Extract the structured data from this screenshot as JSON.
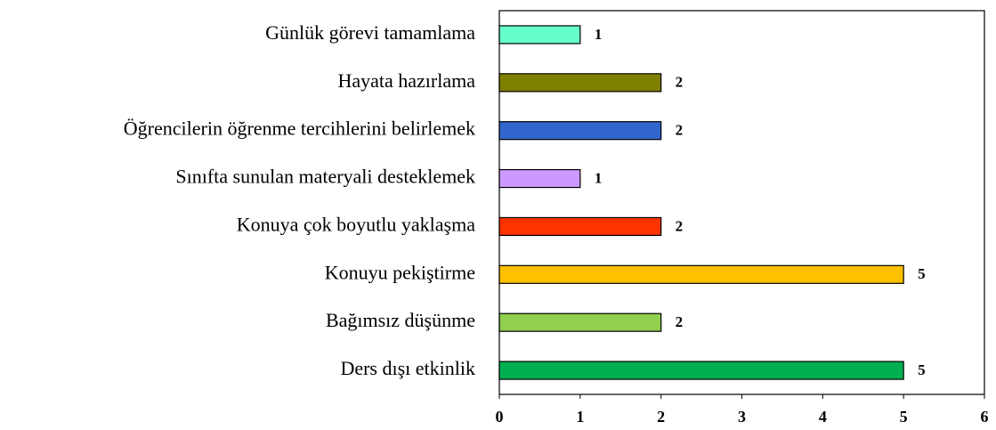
{
  "chart_data": {
    "type": "bar",
    "orientation": "horizontal",
    "categories": [
      "Günlük görevi tamamlama",
      "Hayata hazırlama",
      "Öğrencilerin öğrenme tercihlerini belirlemek",
      "Sınıfta sunulan materyali desteklemek",
      "Konuya çok boyutlu yaklaşma",
      "Konuyu pekiştirme",
      "Bağımsız düşünme",
      "Ders dışı etkinlik"
    ],
    "values": [
      1,
      2,
      2,
      1,
      2,
      5,
      2,
      5
    ],
    "colors": [
      "#66ffcc",
      "#808000",
      "#3366cc",
      "#cc99ff",
      "#ff3300",
      "#ffc000",
      "#92d050",
      "#00b050"
    ],
    "xlim": [
      0,
      6
    ],
    "xticks": [
      0,
      1,
      2,
      3,
      4,
      5,
      6
    ],
    "grid": false
  }
}
